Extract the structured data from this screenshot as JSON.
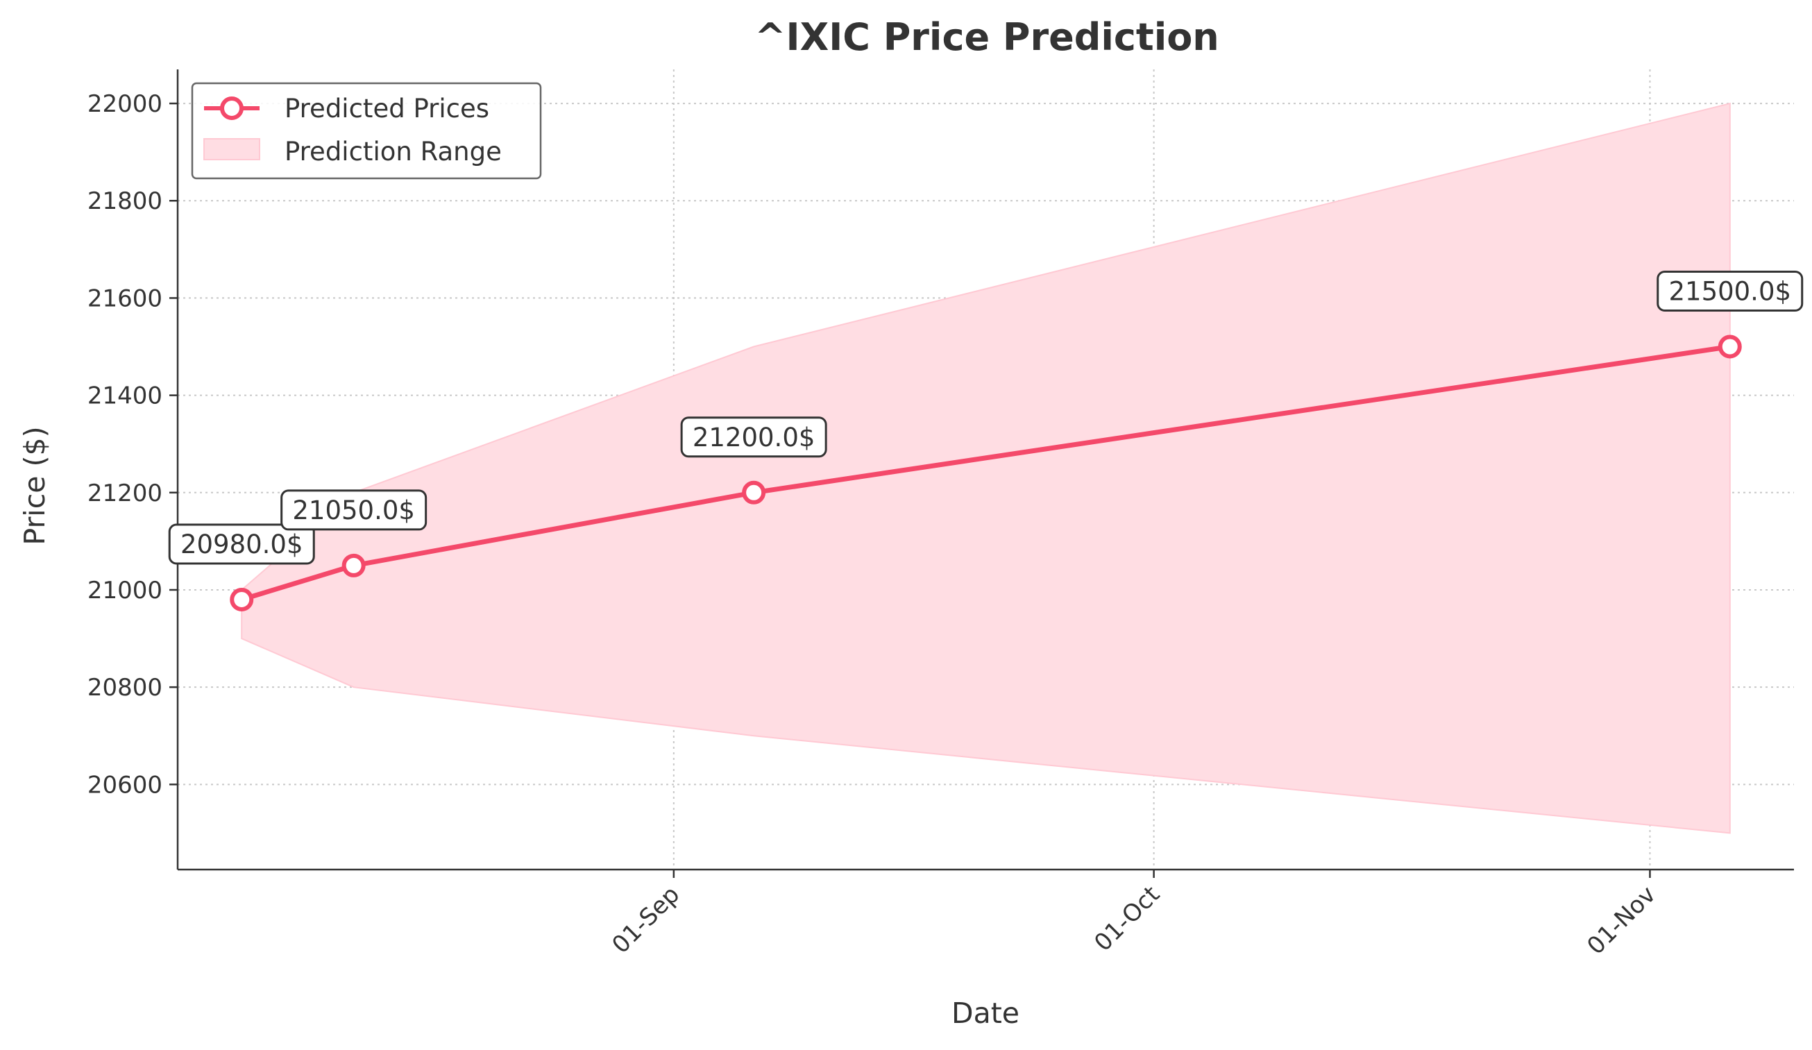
{
  "chart_data": {
    "type": "line",
    "title": "^IXIC Price Prediction",
    "xlabel": "Date",
    "ylabel": "Price ($)",
    "x_ticks": [
      {
        "date": "2025-09-01",
        "label": "01-Sep"
      },
      {
        "date": "2025-10-01",
        "label": "01-Oct"
      },
      {
        "date": "2025-11-01",
        "label": "01-Nov"
      }
    ],
    "y_ticks": [
      20600,
      20800,
      21000,
      21200,
      21400,
      21600,
      21800,
      22000
    ],
    "xlim": [
      "2025-08-01",
      "2025-11-10"
    ],
    "ylim": [
      20425,
      22070
    ],
    "grid": true,
    "legend_position": "top-left",
    "series": [
      {
        "name": "Predicted Prices",
        "color": "#f4496a",
        "points": [
          {
            "x": "2025-08-05",
            "y": 20980,
            "label": "20980.0$"
          },
          {
            "x": "2025-08-12",
            "y": 21050,
            "label": "21050.0$"
          },
          {
            "x": "2025-09-06",
            "y": 21200,
            "label": "21200.0$"
          },
          {
            "x": "2025-11-06",
            "y": 21500,
            "label": "21500.0$"
          }
        ]
      }
    ],
    "range": {
      "name": "Prediction Range",
      "color": "#ffdde3",
      "upper": [
        {
          "x": "2025-08-05",
          "y": 21000
        },
        {
          "x": "2025-08-12",
          "y": 21200
        },
        {
          "x": "2025-09-06",
          "y": 21500
        },
        {
          "x": "2025-11-06",
          "y": 22000
        }
      ],
      "lower": [
        {
          "x": "2025-08-05",
          "y": 20900
        },
        {
          "x": "2025-08-12",
          "y": 20800
        },
        {
          "x": "2025-09-06",
          "y": 20700
        },
        {
          "x": "2025-11-06",
          "y": 20500
        }
      ]
    }
  }
}
